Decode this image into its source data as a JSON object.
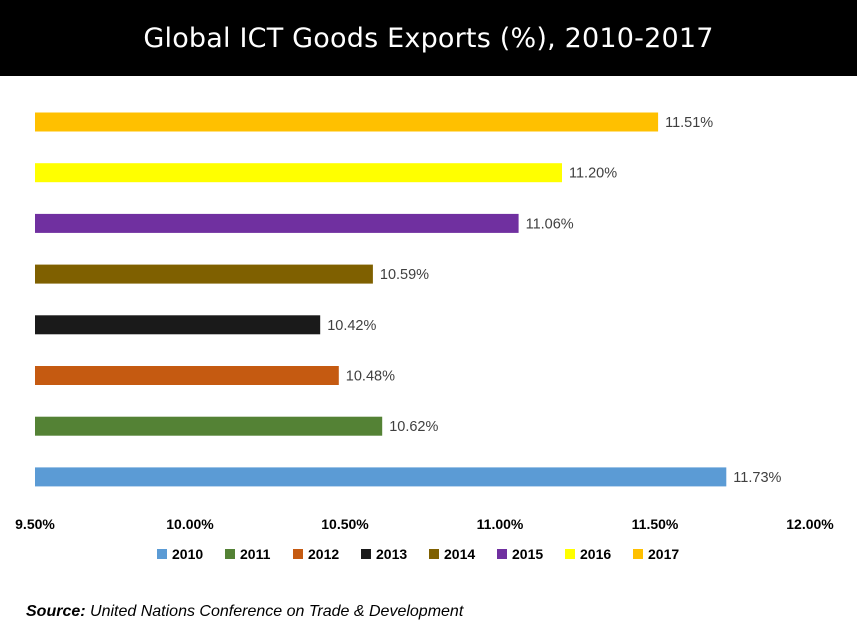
{
  "title": "Global ICT Goods Exports (%), 2010-2017",
  "source": {
    "label": "Source:",
    "text": "United Nations Conference on Trade & Development"
  },
  "chart_data": {
    "type": "bar",
    "orientation": "horizontal",
    "title": "Global ICT Goods Exports (%), 2010-2017",
    "xlim": [
      9.5,
      12.0
    ],
    "x_ticks": [
      "9.50%",
      "10.00%",
      "10.50%",
      "11.00%",
      "11.50%",
      "12.00%"
    ],
    "x_tick_values": [
      9.5,
      10.0,
      10.5,
      11.0,
      11.5,
      12.0
    ],
    "grid": false,
    "legend_position": "bottom",
    "series": [
      {
        "name": "2010",
        "value": 11.73,
        "label": "11.73%",
        "color": "#5B9BD5"
      },
      {
        "name": "2011",
        "value": 10.62,
        "label": "10.62%",
        "color": "#548235"
      },
      {
        "name": "2012",
        "value": 10.48,
        "label": "10.48%",
        "color": "#C55A11"
      },
      {
        "name": "2013",
        "value": 10.42,
        "label": "10.42%",
        "color": "#1A1A1A"
      },
      {
        "name": "2014",
        "value": 10.59,
        "label": "10.59%",
        "color": "#7F6000"
      },
      {
        "name": "2015",
        "value": 11.06,
        "label": "11.06%",
        "color": "#7030A0"
      },
      {
        "name": "2016",
        "value": 11.2,
        "label": "11.20%",
        "color": "#FFFF00"
      },
      {
        "name": "2017",
        "value": 11.51,
        "label": "11.51%",
        "color": "#FFC000"
      }
    ]
  }
}
